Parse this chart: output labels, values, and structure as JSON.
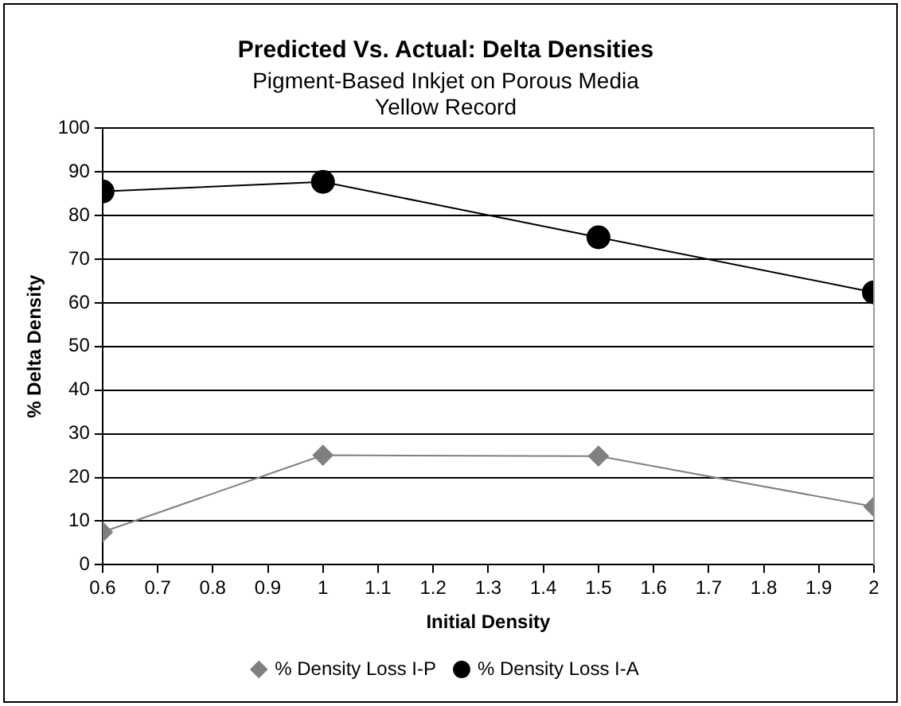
{
  "chart_data": {
    "type": "line",
    "title": "Predicted Vs. Actual: Delta Densities",
    "subtitle": "Pigment-Based Inkjet on Porous Media\nYellow Record",
    "xlabel": "Initial Density",
    "ylabel": "% Delta Density",
    "x": [
      0.6,
      1,
      1.5,
      2
    ],
    "series": [
      {
        "name": "% Density Loss I-P",
        "color": "#808080",
        "marker": "diamond",
        "values": [
          7.5,
          25.1,
          24.9,
          13.3
        ]
      },
      {
        "name": "% Density Loss I-A",
        "color": "#000000",
        "marker": "circle",
        "values": [
          85.5,
          87.7,
          75.0,
          62.4
        ]
      }
    ],
    "xlim": [
      0.6,
      2
    ],
    "xticks": [
      0.6,
      0.7,
      0.8,
      0.9,
      1,
      1.1,
      1.2,
      1.3,
      1.4,
      1.5,
      1.6,
      1.7,
      1.8,
      1.9,
      2
    ],
    "ylim": [
      0,
      100
    ],
    "yticks": [
      0,
      10,
      20,
      30,
      40,
      50,
      60,
      70,
      80,
      90,
      100
    ],
    "grid": "y",
    "legend": "bottom"
  }
}
